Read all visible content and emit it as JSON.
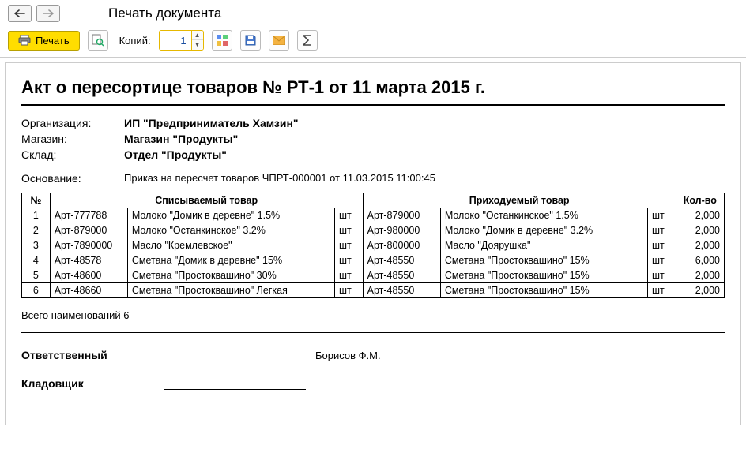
{
  "nav": {
    "title": "Печать документа"
  },
  "toolbar": {
    "print_label": "Печать",
    "copies_label": "Копий:",
    "copies_value": "1"
  },
  "document": {
    "title": "Акт о пересортице товаров № РТ-1 от 11 марта 2015 г.",
    "org_label": "Организация:",
    "org_value": "ИП \"Предприниматель Хамзин\"",
    "store_label": "Магазин:",
    "store_value": "Магазин \"Продукты\"",
    "warehouse_label": "Склад:",
    "warehouse_value": "Отдел \"Продукты\"",
    "basis_label": "Основание:",
    "basis_value": "Приказ на пересчет товаров ЧПРТ-000001 от 11.03.2015 11:00:45",
    "headers": {
      "num": "№",
      "out": "Списываемый товар",
      "in": "Приходуемый товар",
      "qty": "Кол-во"
    },
    "rows": [
      {
        "n": "1",
        "oa": "Арт-777788",
        "on": "Молоко \"Домик в деревне\" 1.5%",
        "ou": "шт",
        "ia": "Арт-879000",
        "in": "Молоко \"Останкинское\" 1.5%",
        "iu": "шт",
        "q": "2,000"
      },
      {
        "n": "2",
        "oa": "Арт-879000",
        "on": "Молоко \"Останкинское\" 3.2%",
        "ou": "шт",
        "ia": "Арт-980000",
        "in": "Молоко \"Домик в деревне\" 3.2%",
        "iu": "шт",
        "q": "2,000"
      },
      {
        "n": "3",
        "oa": "Арт-7890000",
        "on": "Масло \"Кремлевское\"",
        "ou": "шт",
        "ia": "Арт-800000",
        "in": "Масло \"Доярушка\"",
        "iu": "шт",
        "q": "2,000"
      },
      {
        "n": "4",
        "oa": "Арт-48578",
        "on": "Сметана \"Домик в деревне\" 15%",
        "ou": "шт",
        "ia": "Арт-48550",
        "in": "Сметана \"Простоквашино\" 15%",
        "iu": "шт",
        "q": "6,000"
      },
      {
        "n": "5",
        "oa": "Арт-48600",
        "on": "Сметана \"Простоквашино\" 30%",
        "ou": "шт",
        "ia": "Арт-48550",
        "in": "Сметана \"Простоквашино\" 15%",
        "iu": "шт",
        "q": "2,000"
      },
      {
        "n": "6",
        "oa": "Арт-48660",
        "on": "Сметана \"Простоквашино\" Легкая",
        "ou": "шт",
        "ia": "Арт-48550",
        "in": "Сметана \"Простоквашино\" 15%",
        "iu": "шт",
        "q": "2,000"
      }
    ],
    "total_line": "Всего наименований 6",
    "sign1_label": "Ответственный",
    "sign1_name": "Борисов Ф.М.",
    "sign2_label": "Кладовщик"
  },
  "colors": {
    "print_btn_bg": "#ffdd00",
    "border": "#000000"
  }
}
